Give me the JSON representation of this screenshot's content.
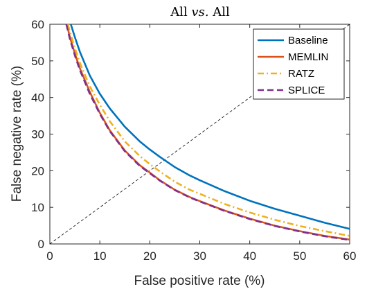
{
  "chart_data": {
    "type": "line",
    "title_parts": [
      "All ",
      "vs.",
      " All"
    ],
    "xlabel": "False positive rate (%)",
    "ylabel": "False negative rate (%)",
    "xlim": [
      0,
      60
    ],
    "ylim": [
      0,
      60
    ],
    "xticks": [
      "0",
      "10",
      "20",
      "30",
      "40",
      "50",
      "60"
    ],
    "yticks": [
      "0",
      "10",
      "20",
      "30",
      "40",
      "50",
      "60"
    ],
    "grid": false,
    "legend_position": "top-right",
    "diagonal_reference": true,
    "series": [
      {
        "name": "Baseline",
        "color": "#0072bd",
        "dash": "solid",
        "x": [
          4.2,
          5,
          6,
          8,
          10,
          12,
          15,
          18,
          20,
          22,
          25,
          28,
          30,
          35,
          40,
          45,
          50,
          55,
          60
        ],
        "y": [
          60,
          56.5,
          52.5,
          46,
          41,
          37,
          32,
          28,
          25.8,
          23.8,
          21,
          18.7,
          17.4,
          14.4,
          11.8,
          9.6,
          7.7,
          5.8,
          4.1
        ]
      },
      {
        "name": "MEMLIN",
        "color": "#d95319",
        "dash": "solid",
        "x": [
          3.4,
          4,
          5,
          6,
          8,
          10,
          12,
          15,
          18,
          20,
          22,
          25,
          28,
          30,
          35,
          40,
          45,
          50,
          55,
          60
        ],
        "y": [
          60,
          56.5,
          52,
          48,
          41.5,
          35.8,
          31,
          25.5,
          21.5,
          19.5,
          17.4,
          14.8,
          12.8,
          11.7,
          9.1,
          6.9,
          5,
          3.5,
          2.2,
          1.2
        ]
      },
      {
        "name": "RATZ",
        "color": "#edb120",
        "dash": "dashdot",
        "x": [
          3.6,
          4,
          5,
          6,
          8,
          10,
          12,
          15,
          18,
          20,
          22,
          25,
          28,
          30,
          35,
          40,
          45,
          50,
          55,
          60
        ],
        "y": [
          60,
          58,
          53.5,
          49.5,
          43,
          38,
          33.5,
          28,
          24,
          21.8,
          19.8,
          17,
          14.8,
          13.7,
          10.9,
          8.6,
          6.6,
          4.9,
          3.5,
          2.2
        ]
      },
      {
        "name": "SPLICE",
        "color": "#7e2f8e",
        "dash": "dashed",
        "x": [
          3.3,
          4,
          5,
          6,
          8,
          10,
          12,
          15,
          18,
          20,
          22,
          25,
          28,
          30,
          35,
          40,
          45,
          50,
          55,
          60
        ],
        "y": [
          60,
          56,
          51.5,
          47.5,
          41,
          35.5,
          30.8,
          25.3,
          21.3,
          19.3,
          17.3,
          14.7,
          12.7,
          11.6,
          9,
          6.8,
          4.9,
          3.4,
          2.1,
          1.1
        ]
      }
    ]
  }
}
